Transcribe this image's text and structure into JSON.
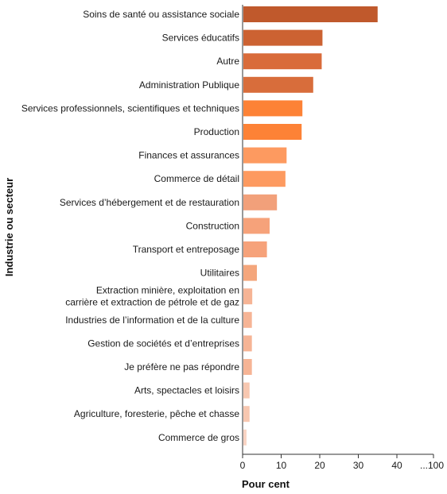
{
  "chart_data": {
    "type": "bar",
    "orientation": "horizontal",
    "ylabel": "Industrie ou secteur",
    "xlabel": "Pour cent",
    "xlim": [
      0,
      50
    ],
    "xticks": [
      "0",
      "10",
      "20",
      "30",
      "40",
      "...100"
    ],
    "grid": false,
    "categories": [
      [
        "Soins de santé ou assistance sociale"
      ],
      [
        "Services éducatifs"
      ],
      [
        "Autre"
      ],
      [
        "Administration Publique"
      ],
      [
        "Services professionnels, scientifiques et techniques"
      ],
      [
        "Production"
      ],
      [
        "Finances et assurances"
      ],
      [
        "Commerce de détail"
      ],
      [
        "Services d’hébergement et de restauration"
      ],
      [
        "Construction"
      ],
      [
        "Transport et entreposage"
      ],
      [
        "Utilitaires"
      ],
      [
        "Extraction minière, exploitation en",
        "carrière et extraction de pétrole et de gaz"
      ],
      [
        "Industries de l’information et de la culture"
      ],
      [
        "Gestion de sociétés et d’entreprises"
      ],
      [
        "Je préfère ne pas répondre"
      ],
      [
        "Arts, spectacles et loisirs"
      ],
      [
        "Agriculture, foresterie, pêche et chasse"
      ],
      [
        "Commerce de gros"
      ]
    ],
    "values": [
      34.8,
      20.5,
      20.3,
      18.1,
      15.3,
      15.1,
      11.2,
      10.9,
      8.7,
      6.8,
      6.1,
      3.5,
      2.3,
      2.2,
      2.2,
      2.2,
      1.6,
      1.6,
      0.8
    ],
    "colors": [
      "#c0592c",
      "#cc6232",
      "#d96b3a",
      "#d86d3b",
      "#fd8236",
      "#fd8236",
      "#fd9a60",
      "#fd9a60",
      "#f2a07a",
      "#f6a27a",
      "#f6a27a",
      "#f4a67c",
      "#f6b495",
      "#f6b495",
      "#f6b495",
      "#f6b495",
      "#f7c7b0",
      "#f7c7b0",
      "#f9d3c2"
    ]
  }
}
